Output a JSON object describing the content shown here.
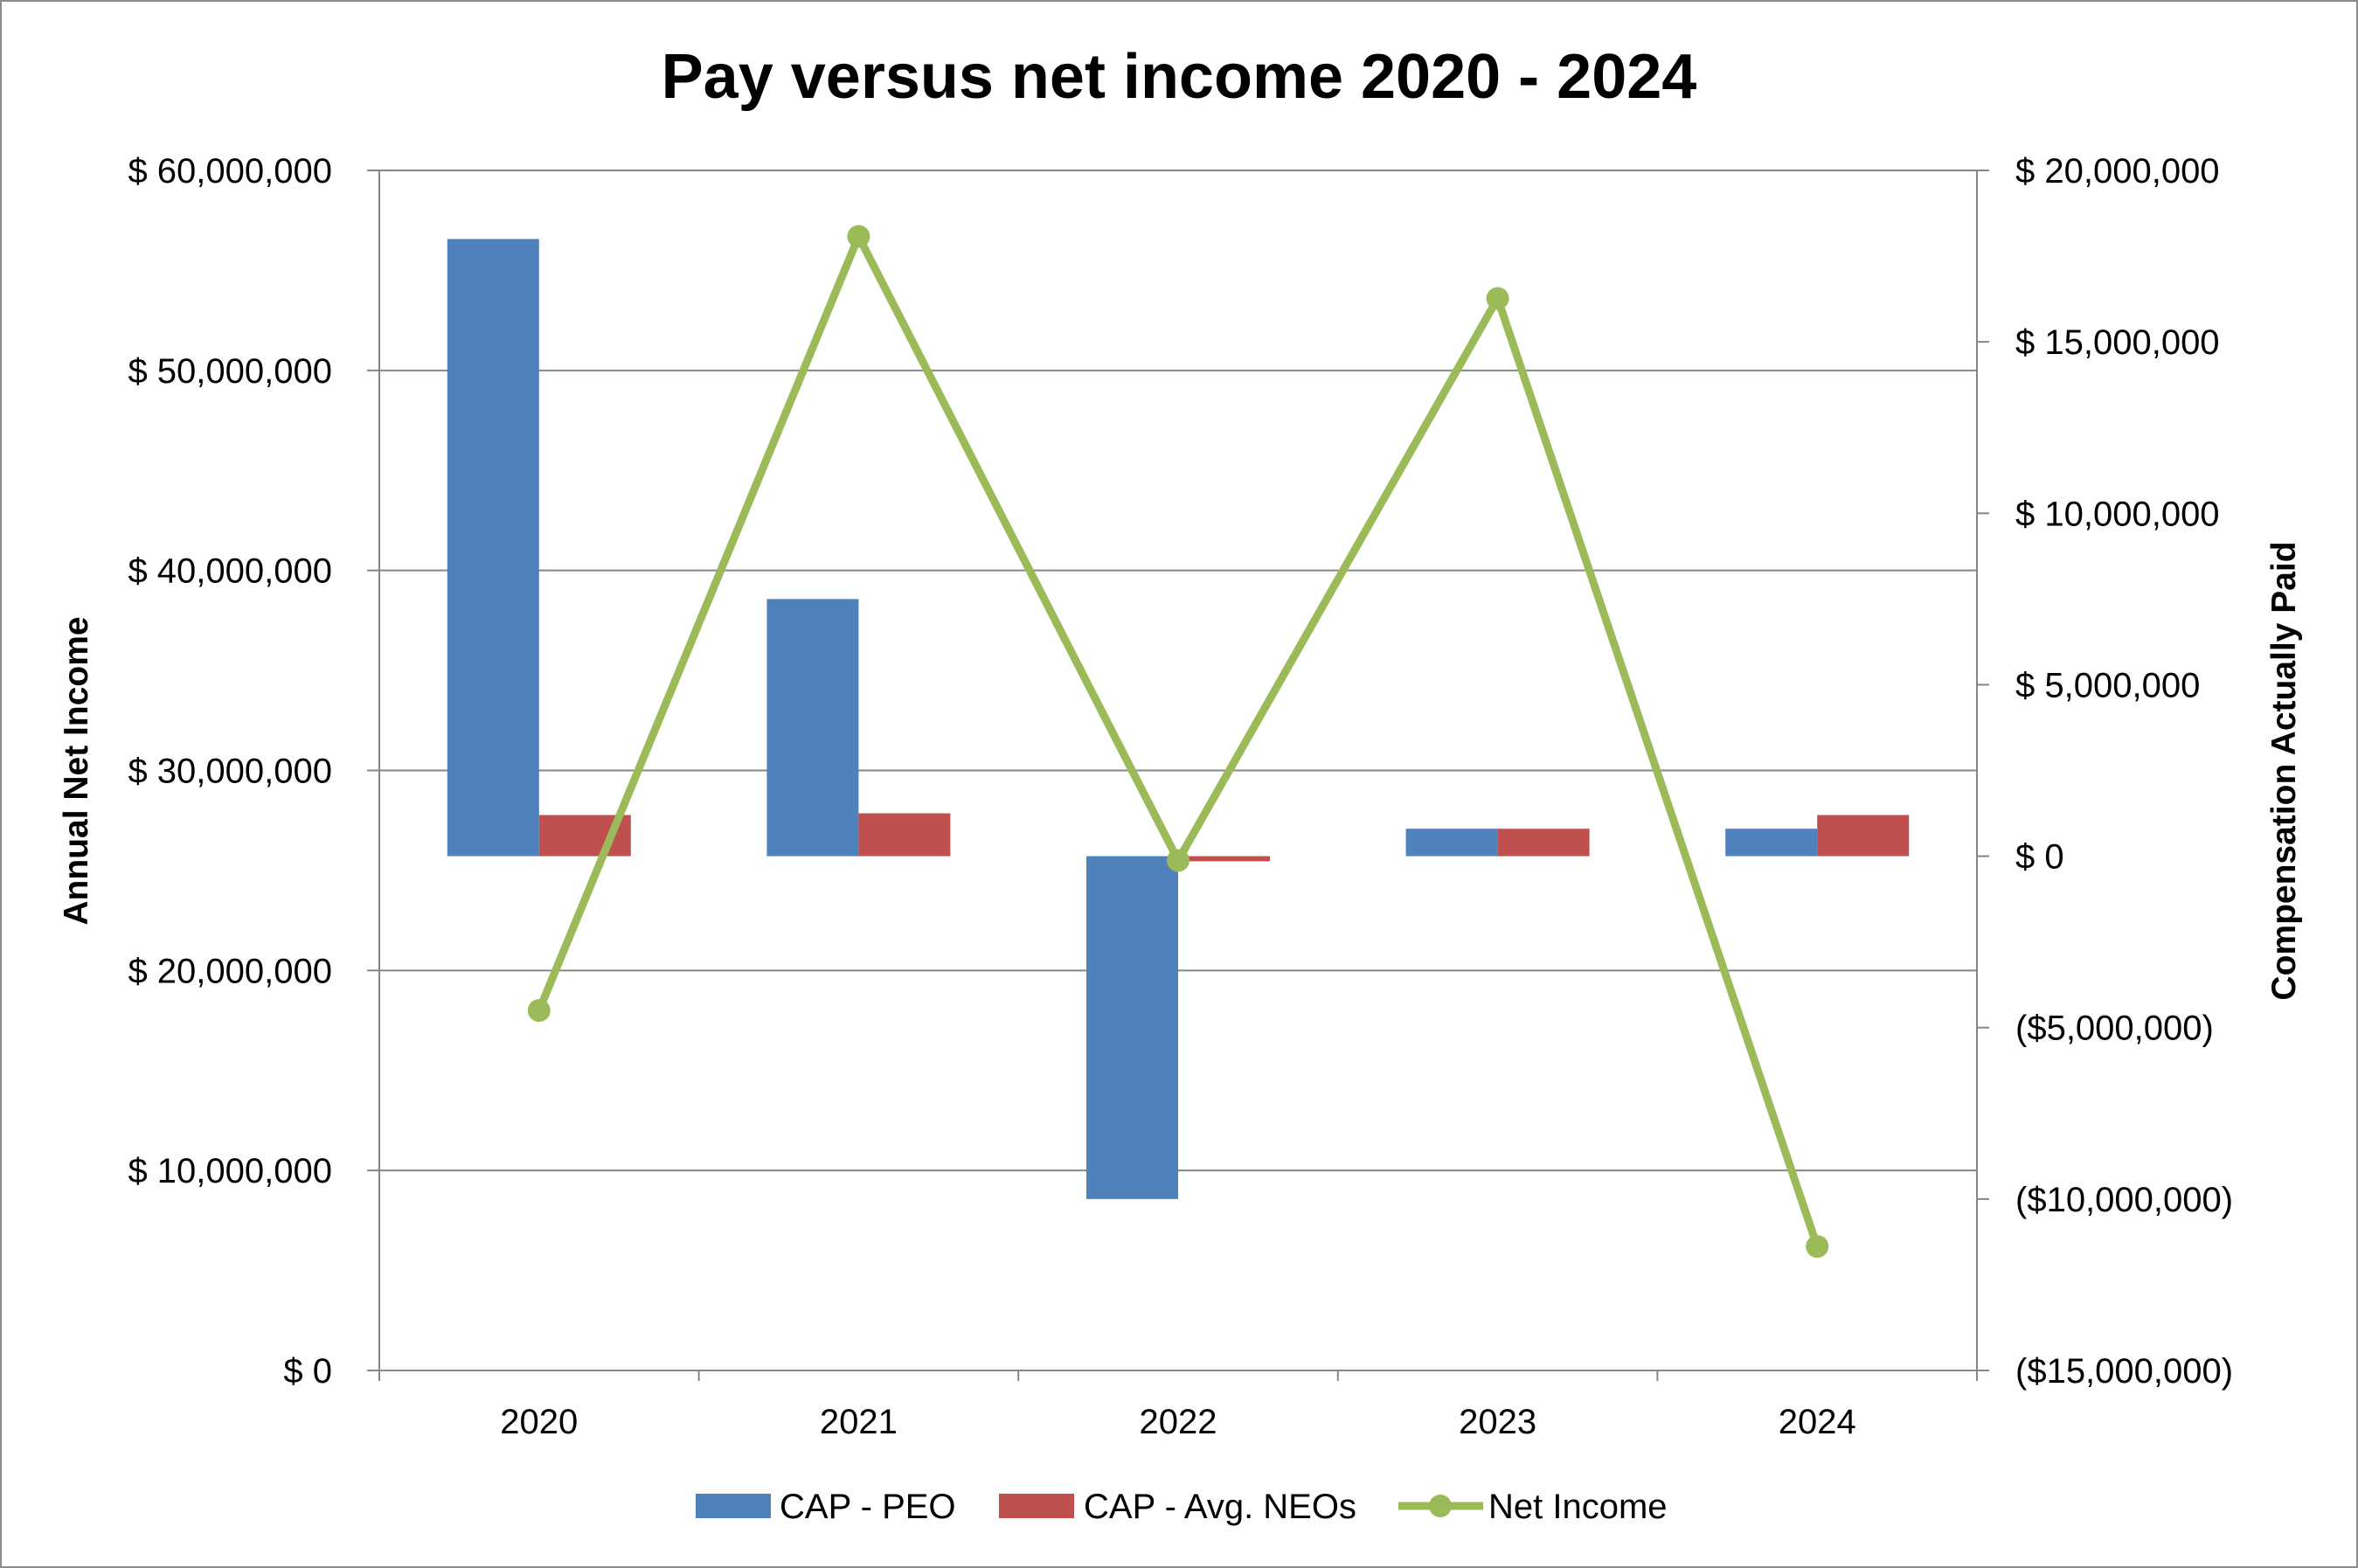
{
  "chart_data": {
    "type": "bar",
    "title": "Pay versus net income 2020 - 2024",
    "categories": [
      "2020",
      "2021",
      "2022",
      "2023",
      "2024"
    ],
    "y_left": {
      "label": "Annual Net Income",
      "range": [
        0,
        60000000
      ],
      "ticks": [
        0,
        10000000,
        20000000,
        30000000,
        40000000,
        50000000,
        60000000
      ],
      "tick_labels": [
        "$ 0",
        "$ 10,000,000",
        "$ 20,000,000",
        "$ 30,000,000",
        "$ 40,000,000",
        "$ 50,000,000",
        "$ 60,000,000"
      ]
    },
    "y_right": {
      "label": "Compensation Actually Paid",
      "range": [
        -15000000,
        20000000
      ],
      "ticks": [
        -15000000,
        -10000000,
        -5000000,
        0,
        5000000,
        10000000,
        15000000,
        20000000
      ],
      "tick_labels": [
        "($15,000,000)",
        "($10,000,000)",
        "($5,000,000)",
        "$ 0",
        "$ 5,000,000",
        "$ 10,000,000",
        "$ 15,000,000",
        "$ 20,000,000"
      ]
    },
    "series": [
      {
        "name": "CAP - PEO",
        "type": "bar",
        "axis": "right",
        "color": "#4f81bd",
        "values": [
          18000000,
          7500000,
          -10000000,
          800000,
          800000
        ]
      },
      {
        "name": "CAP - Avg. NEOs",
        "type": "bar",
        "axis": "right",
        "color": "#c0504d",
        "values": [
          1200000,
          1250000,
          -150000,
          800000,
          1200000
        ]
      },
      {
        "name": "Net Income",
        "type": "line",
        "axis": "left",
        "color": "#9bbb59",
        "values": [
          18000000,
          56700000,
          25500000,
          53600000,
          6200000
        ]
      }
    ],
    "grid": true,
    "legend_position": "bottom"
  }
}
